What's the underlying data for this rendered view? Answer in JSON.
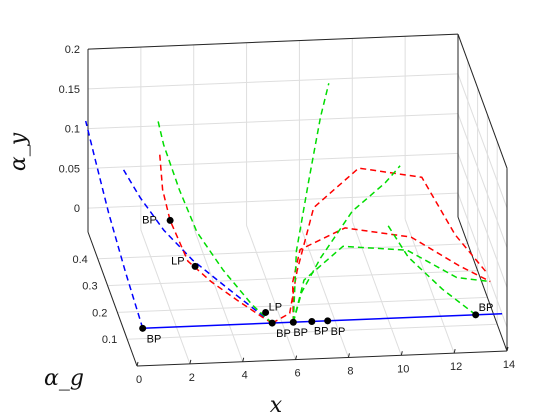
{
  "chart_data": {
    "type": "line",
    "title": "",
    "xlabel": "x",
    "ylabel": "α_g",
    "zlabel": "α_y",
    "xlim": [
      0,
      14
    ],
    "ylim": [
      0,
      0.5
    ],
    "zlim": [
      -0.03,
      0.2
    ],
    "xticks": [
      "0",
      "2",
      "4",
      "6",
      "8",
      "10",
      "12",
      "14"
    ],
    "yticks": [
      "0.1",
      "0.2",
      "0.3",
      "0.4"
    ],
    "zticks": [
      "0",
      "0.05",
      "0.1",
      "0.15",
      "0.2"
    ],
    "grid": true,
    "colors": {
      "blue": "#0000ff",
      "red": "#ff0000",
      "green": "#00dd00",
      "point": "#000000"
    },
    "series": [
      {
        "color": "blue",
        "style": "solid",
        "points": [
          [
            0.4,
            0.05,
            0
          ],
          [
            14,
            0.05,
            0
          ]
        ]
      },
      {
        "color": "blue",
        "style": "dashed",
        "points": [
          [
            0.4,
            0.05,
            0
          ],
          [
            0.2,
            0.17,
            0.03
          ],
          [
            0.0,
            0.29,
            0.065
          ],
          [
            -0.1,
            0.4,
            0.095
          ],
          [
            -0.2,
            0.47,
            0.12
          ]
        ]
      },
      {
        "color": "blue",
        "style": "dashed",
        "points": [
          [
            5.3,
            0.05,
            0
          ],
          [
            4.0,
            0.16,
            0.009
          ],
          [
            3.0,
            0.24,
            0.018
          ],
          [
            2.2,
            0.32,
            0.03
          ],
          [
            1.6,
            0.4,
            0.045
          ],
          [
            1.2,
            0.46,
            0.06
          ]
        ]
      },
      {
        "color": "red",
        "style": "dashed",
        "points": [
          [
            5.3,
            0.05,
            0
          ],
          [
            5.0,
            0.075,
            0
          ],
          [
            4.3,
            0.14,
            0
          ],
          [
            3.6,
            0.21,
            0
          ],
          [
            3.0,
            0.29,
            0
          ],
          [
            2.7,
            0.39,
            0.018
          ],
          [
            2.6,
            0.44,
            0.04
          ],
          [
            2.6,
            0.47,
            0.075
          ]
        ]
      },
      {
        "color": "red",
        "style": "dashed",
        "points": [
          [
            5.3,
            0.05,
            0
          ],
          [
            6.0,
            0.06,
            0.008
          ],
          [
            6.5,
            0.12,
            0.04
          ],
          [
            7.5,
            0.22,
            0.085
          ],
          [
            9.5,
            0.3,
            0.105
          ],
          [
            12.0,
            0.33,
            0.08
          ],
          [
            13.0,
            0.26,
            0.03
          ],
          [
            14.0,
            0.2,
            0
          ]
        ]
      },
      {
        "color": "red",
        "style": "dashed",
        "points": [
          [
            6.1,
            0.05,
            0
          ],
          [
            6.3,
            0.11,
            0.03
          ],
          [
            6.8,
            0.17,
            0.05
          ],
          [
            8.5,
            0.17,
            0.075
          ],
          [
            11.0,
            0.17,
            0.06
          ],
          [
            12.8,
            0.17,
            0.022
          ],
          [
            14.0,
            0.17,
            0
          ]
        ]
      },
      {
        "color": "green",
        "style": "dashed",
        "points": [
          [
            5.3,
            0.05,
            0
          ],
          [
            4.8,
            0.12,
            0
          ],
          [
            4.0,
            0.2,
            0.018
          ],
          [
            3.3,
            0.28,
            0.04
          ],
          [
            2.9,
            0.35,
            0.07
          ],
          [
            2.6,
            0.43,
            0.1
          ],
          [
            2.5,
            0.46,
            0.12
          ]
        ]
      },
      {
        "color": "green",
        "style": "dashed",
        "points": [
          [
            6.1,
            0.05,
            0
          ],
          [
            6.7,
            0.18,
            0.045
          ],
          [
            7.6,
            0.3,
            0.09
          ],
          [
            8.5,
            0.42,
            0.13
          ],
          [
            9.0,
            0.47,
            0.155
          ]
        ]
      },
      {
        "color": "green",
        "style": "dashed",
        "points": [
          [
            6.1,
            0.05,
            0
          ],
          [
            6.8,
            0.13,
            0.025
          ],
          [
            8.5,
            0.19,
            0.045
          ],
          [
            11.0,
            0.21,
            0.03
          ],
          [
            12.8,
            0.19,
            0
          ],
          [
            14.0,
            0.17,
            0
          ]
        ]
      },
      {
        "color": "green",
        "style": "dashed",
        "points": [
          [
            6.1,
            0.05,
            0
          ],
          [
            6.6,
            0.1,
            0.02
          ],
          [
            7.5,
            0.15,
            0.045
          ],
          [
            9.0,
            0.23,
            0.075
          ],
          [
            10.5,
            0.3,
            0.085
          ],
          [
            11.4,
            0.39,
            0.075
          ]
        ]
      },
      {
        "color": "green",
        "style": "dashed",
        "points": [
          [
            13.0,
            0.05,
            0
          ],
          [
            12.0,
            0.12,
            0.01
          ],
          [
            11.0,
            0.2,
            0.025
          ],
          [
            10.5,
            0.28,
            0.04
          ]
        ]
      }
    ],
    "special_points": [
      {
        "label": "BP",
        "x": 0.4,
        "y": 0.05,
        "z": 0,
        "dx": 4,
        "dy": 14
      },
      {
        "label": "BP",
        "x": 2.7,
        "y": 0.39,
        "z": 0.018,
        "dx": -28,
        "dy": 3
      },
      {
        "label": "LP",
        "x": 3.2,
        "y": 0.27,
        "z": 0,
        "dx": -24,
        "dy": -2
      },
      {
        "label": "LP",
        "x": 5.2,
        "y": 0.09,
        "z": 0,
        "dx": 3,
        "dy": -2
      },
      {
        "label": "BP",
        "x": 5.3,
        "y": 0.05,
        "z": 0,
        "dx": 4,
        "dy": 14
      },
      {
        "label": "BP",
        "x": 6.1,
        "y": 0.05,
        "z": 0,
        "dx": 0,
        "dy": 14
      },
      {
        "label": "BP",
        "x": 6.8,
        "y": 0.05,
        "z": 0,
        "dx": 2,
        "dy": 13
      },
      {
        "label": "BP",
        "x": 7.4,
        "y": 0.05,
        "z": 0,
        "dx": 3,
        "dy": 14
      },
      {
        "label": "BP",
        "x": 13.0,
        "y": 0.05,
        "z": 0,
        "dx": 3,
        "dy": -4
      }
    ]
  }
}
